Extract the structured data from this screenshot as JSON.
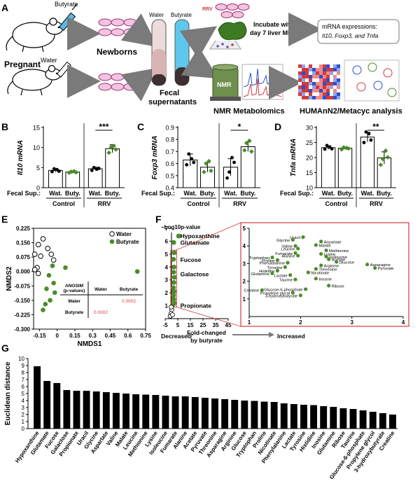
{
  "panel_letters": [
    "A",
    "B",
    "C",
    "D",
    "E",
    "F",
    "G"
  ],
  "panelA": {
    "butyrate_label": "Butyrate",
    "water_label": "Water",
    "pregnant": "Pregnant",
    "newborns": "Newborns",
    "tube_water": "Water",
    "tube_butyrate": "Butyrate",
    "fecal_line1": "Fecal",
    "fecal_line2": "supernatants",
    "rrv": "RRV",
    "incubate_line1": "Incubate with",
    "incubate_line2": "day 7 liver MNCs",
    "mrna_line1": "mRNA expressions:",
    "mrna_line2": "Il10, Foxp3, and Tnfa",
    "nmr_box": "NMR",
    "nmr_caption": "NMR Metabolomics",
    "humann_caption": "HUMAnN2/Metacyc analysis"
  },
  "fecal_sup_label": "Fecal Sup.:",
  "group_labels": [
    "Control",
    "RRV"
  ],
  "bar_category_labels": [
    "Wat.",
    "Buty.",
    "Wat.",
    "Buty."
  ],
  "colors": {
    "butyrate_green": "#4a8c2a",
    "accent_red": "#d43a3a",
    "bar_edge": "#000000"
  },
  "chart_data": [
    {
      "id": "B",
      "type": "bar",
      "ylabel": "Il10 mRNA",
      "ylim": [
        0,
        15
      ],
      "yticks": [
        0,
        5,
        10,
        15
      ],
      "categories": [
        "Wat.",
        "Buty.",
        "Wat.",
        "Buty."
      ],
      "groups": [
        "Control",
        "RRV"
      ],
      "values": [
        4.3,
        3.9,
        4.7,
        9.7
      ],
      "errors": [
        0.4,
        0.3,
        0.4,
        1.0
      ],
      "points": [
        [
          4.0,
          4.7,
          4.5,
          4.1
        ],
        [
          3.7,
          4.0,
          4.1,
          3.8
        ],
        [
          4.3,
          5.0,
          4.6,
          4.8
        ],
        [
          8.7,
          10.1,
          10.4,
          9.5
        ]
      ],
      "significance": "***"
    },
    {
      "id": "C",
      "type": "bar",
      "ylabel": "Foxp3 mRNA",
      "ylim": [
        0.4,
        0.9
      ],
      "yticks": [
        0.4,
        0.5,
        0.6,
        0.7,
        0.8,
        0.9
      ],
      "categories": [
        "Wat.",
        "Buty.",
        "Wat.",
        "Buty."
      ],
      "groups": [
        "Control",
        "RRV"
      ],
      "values": [
        0.63,
        0.57,
        0.57,
        0.74
      ],
      "errors": [
        0.05,
        0.04,
        0.07,
        0.04
      ],
      "points": [
        [
          0.59,
          0.68,
          0.64,
          0.61
        ],
        [
          0.53,
          0.6,
          0.62,
          0.54
        ],
        [
          0.48,
          0.53,
          0.65,
          0.61
        ],
        [
          0.71,
          0.77,
          0.79,
          0.7
        ]
      ],
      "significance": "*"
    },
    {
      "id": "D",
      "type": "bar",
      "ylabel": "Tnfa mRNA",
      "ylim": [
        10,
        30
      ],
      "yticks": [
        10,
        15,
        20,
        25,
        30
      ],
      "categories": [
        "Wat.",
        "Buty.",
        "Wat.",
        "Buty."
      ],
      "groups": [
        "Control",
        "RRV"
      ],
      "values": [
        23.3,
        23.1,
        26.8,
        19.9
      ],
      "errors": [
        0.6,
        0.4,
        1.6,
        2.0
      ],
      "points": [
        [
          22.8,
          24.0,
          23.5,
          22.9
        ],
        [
          22.7,
          23.4,
          23.2,
          23.0
        ],
        [
          25.0,
          28.5,
          27.9,
          25.8
        ],
        [
          17.6,
          19.5,
          22.3,
          20.1
        ]
      ],
      "significance": "**"
    },
    {
      "id": "E",
      "type": "scatter",
      "xlabel": "NMDS1",
      "ylabel": "NMDS2",
      "xlim": [
        -0.2,
        0.75
      ],
      "ylim": [
        -0.3,
        0.225
      ],
      "xticks": [
        -0.15,
        0,
        0.15,
        0.3,
        0.45,
        0.6,
        0.75
      ],
      "ytick_labels": [
        "0.225",
        "0.150",
        "0.075",
        "0.000",
        "-0.075",
        "-0.150",
        "-0.225",
        "-0.300"
      ],
      "yticks": [
        0.225,
        0.15,
        0.075,
        0.0,
        -0.075,
        -0.15,
        -0.225,
        -0.3
      ],
      "legend": "top-right",
      "series": [
        {
          "name": "Water",
          "points": [
            [
              -0.12,
              0.17
            ],
            [
              -0.16,
              0.14
            ],
            [
              -0.19,
              0.09
            ],
            [
              -0.14,
              0.08
            ],
            [
              -0.08,
              0.12
            ],
            [
              -0.05,
              0.09
            ],
            [
              -0.03,
              0.06
            ],
            [
              -0.17,
              0.02
            ],
            [
              -0.19,
              0.01
            ],
            [
              -0.16,
              -0.01
            ]
          ]
        },
        {
          "name": "Butyrate",
          "points": [
            [
              -0.04,
              0.03
            ],
            [
              0.07,
              0.02
            ],
            [
              -0.07,
              -0.02
            ],
            [
              -0.03,
              -0.06
            ],
            [
              -0.09,
              -0.09
            ],
            [
              -0.02,
              -0.11
            ],
            [
              -0.06,
              -0.15
            ],
            [
              -0.1,
              -0.17
            ],
            [
              -0.12,
              -0.2
            ],
            [
              0.68,
              0.0
            ]
          ]
        }
      ],
      "anosim_table": {
        "header": [
          "ANOSIM\n(p-values)",
          "Water",
          "Butyrate"
        ],
        "rows": [
          [
            "Water",
            "",
            "0.0002"
          ],
          [
            "Butyrate",
            "0.0002",
            ""
          ]
        ]
      }
    },
    {
      "id": "F",
      "type": "scatter",
      "ylabel": "−Log10p-value",
      "xlabel_line1": "Fold-changed",
      "xlabel_line2": "by butyrate",
      "left_direction": "Decreased",
      "right_direction": "Increased",
      "xlim": [
        -5,
        45
      ],
      "ylim": [
        0,
        7
      ],
      "xticks": [
        -5,
        5,
        15,
        25,
        35,
        45
      ],
      "yticks": [
        1,
        2,
        3,
        4,
        5,
        6,
        7
      ],
      "annotations": [
        "Hypoxanthine",
        "Glutamate",
        "Fucose",
        "Galactose",
        "Propionate"
      ],
      "points": [
        [
          5.6,
          6.4
        ],
        [
          1.8,
          5.9
        ],
        [
          2.2,
          5.1
        ],
        [
          1.6,
          4.6
        ],
        [
          2.0,
          4.0
        ],
        [
          1.7,
          3.6
        ],
        [
          2.3,
          3.2
        ],
        [
          1.9,
          2.8
        ],
        [
          1.5,
          2.4
        ],
        [
          2.1,
          2.1
        ],
        [
          1.6,
          1.8
        ],
        [
          1.8,
          1.5
        ],
        [
          2.2,
          1.2
        ],
        [
          1.4,
          1.1
        ],
        [
          0.3,
          0.7
        ],
        [
          -0.4,
          0.4
        ],
        [
          -1.0,
          0.2
        ],
        [
          0.8,
          0.3
        ],
        [
          -0.2,
          0.9
        ]
      ],
      "inset": {
        "xlim": [
          1,
          4
        ],
        "ylim": [
          0,
          5
        ],
        "xticks": [
          1,
          2,
          3,
          4
        ],
        "yticks": [
          1,
          2,
          3,
          4,
          5
        ],
        "points": [
          {
            "label": "Uracil",
            "x": 2.05,
            "y": 4.5
          },
          {
            "label": "Glycine",
            "x": 1.85,
            "y": 4.35
          },
          {
            "label": "Aspartate",
            "x": 2.4,
            "y": 4.25
          },
          {
            "label": "Malate",
            "x": 2.3,
            "y": 4.05
          },
          {
            "label": "Valine",
            "x": 1.9,
            "y": 4.0
          },
          {
            "label": "Leucine",
            "x": 1.95,
            "y": 3.85
          },
          {
            "label": "Methionine",
            "x": 2.5,
            "y": 3.75
          },
          {
            "label": "Fumarate",
            "x": 1.9,
            "y": 3.6
          },
          {
            "label": "Lysine",
            "x": 2.4,
            "y": 3.55
          },
          {
            "label": "Alanine",
            "x": 1.95,
            "y": 3.45
          },
          {
            "label": "Isoleucine",
            "x": 2.5,
            "y": 3.4
          },
          {
            "label": "Tryptophan",
            "x": 1.45,
            "y": 3.35
          },
          {
            "label": "Acetate",
            "x": 2.55,
            "y": 3.25
          },
          {
            "label": "Proline",
            "x": 1.55,
            "y": 3.2
          },
          {
            "label": "Glucose",
            "x": 2.7,
            "y": 3.1
          },
          {
            "label": "Phenylalanine",
            "x": 1.75,
            "y": 3.05
          },
          {
            "label": "Arginine",
            "x": 2.4,
            "y": 2.9
          },
          {
            "label": "Asparagine",
            "x": 3.3,
            "y": 2.95
          },
          {
            "label": "Tyrosine",
            "x": 1.7,
            "y": 2.8
          },
          {
            "label": "Threonine",
            "x": 2.3,
            "y": 2.7
          },
          {
            "label": "Pyruvate",
            "x": 3.45,
            "y": 2.75
          },
          {
            "label": "Histidine",
            "x": 1.55,
            "y": 2.6
          },
          {
            "label": "Nicotinate",
            "x": 2.15,
            "y": 2.5
          },
          {
            "label": "Glutamine",
            "x": 1.45,
            "y": 2.45
          },
          {
            "label": "Lactate",
            "x": 1.8,
            "y": 2.35
          },
          {
            "label": "Inosine",
            "x": 2.3,
            "y": 2.15
          },
          {
            "label": "Taurine",
            "x": 1.9,
            "y": 2.1
          },
          {
            "label": "Ribose",
            "x": 2.55,
            "y": 1.75
          },
          {
            "label": "Creatine",
            "x": 1.25,
            "y": 1.5
          },
          {
            "label": "Glucose-6-phosphate",
            "x": 2.1,
            "y": 1.55
          },
          {
            "label": "Propylene glycol",
            "x": 1.85,
            "y": 1.35
          },
          {
            "label": "3-hydroxybutyrate",
            "x": 2.0,
            "y": 1.2
          }
        ]
      }
    },
    {
      "id": "G",
      "type": "bar",
      "ylabel": "Euclidean distance",
      "ylim": [
        0,
        10
      ],
      "yticks": [
        0,
        1,
        2,
        3,
        4,
        5,
        6,
        7,
        8,
        9,
        10
      ],
      "categories": [
        "Hypoxanthine",
        "Glutamate",
        "Fucose",
        "Galactose",
        "Propionate",
        "Uracil",
        "Glycine",
        "Aspartate",
        "Valine",
        "Malate",
        "Leucine",
        "Methionine",
        "Lysine",
        "Isoleucine",
        "Fumarate",
        "Alanine",
        "Acetate",
        "Pyruvate",
        "Threonine",
        "Asparagine",
        "Arginine",
        "Glucose",
        "Tryptophan",
        "Proline",
        "Nicotinate",
        "Phenylalanine",
        "Lactate",
        "Tyrosine",
        "Histidine",
        "Inosine",
        "Glutamine",
        "Ribose",
        "Taurine",
        "Glucose-6-phosphate",
        "Propylene glycol",
        "3-hydroxybutyrate",
        "Creatine"
      ],
      "values": [
        8.9,
        6.8,
        6.5,
        5.5,
        5.4,
        5.4,
        5.3,
        5.2,
        5.1,
        5.0,
        4.9,
        4.85,
        4.8,
        4.7,
        4.6,
        4.6,
        4.5,
        4.4,
        4.3,
        4.2,
        4.1,
        4.0,
        3.95,
        3.85,
        3.8,
        3.6,
        3.5,
        3.4,
        3.35,
        3.2,
        3.1,
        2.9,
        2.8,
        2.6,
        2.4,
        2.2,
        2.0
      ]
    }
  ]
}
